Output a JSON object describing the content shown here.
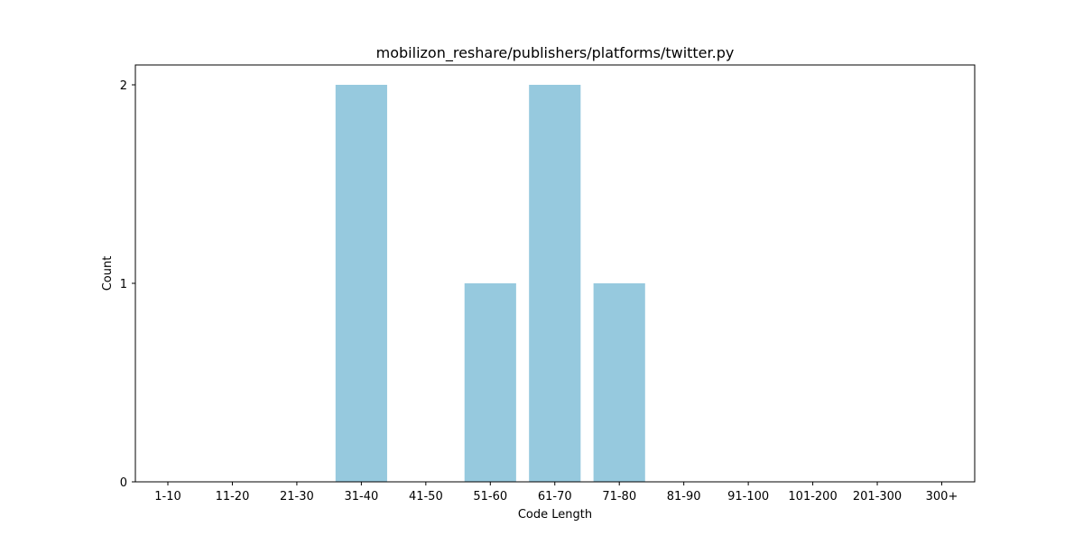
{
  "chart_data": {
    "type": "bar",
    "title": "mobilizon_reshare/publishers/platforms/twitter.py",
    "xlabel": "Code Length",
    "ylabel": "Count",
    "categories": [
      "1-10",
      "11-20",
      "21-30",
      "31-40",
      "41-50",
      "51-60",
      "61-70",
      "71-80",
      "81-90",
      "91-100",
      "101-200",
      "201-300",
      "300+"
    ],
    "values": [
      0,
      0,
      0,
      2,
      0,
      1,
      2,
      1,
      0,
      0,
      0,
      0,
      0
    ],
    "ylim": [
      0,
      2.1
    ],
    "yticks": [
      0,
      1,
      2
    ],
    "grid": false,
    "colors": {
      "bar": "#96c9de",
      "axis": "#000000",
      "background": "#ffffff"
    }
  }
}
